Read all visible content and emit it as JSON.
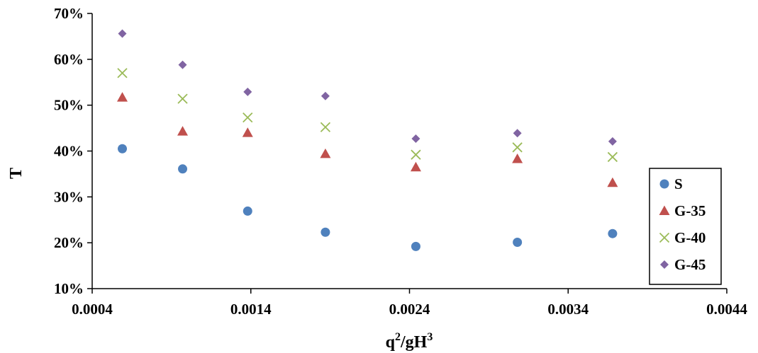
{
  "chart_data": {
    "type": "scatter",
    "xlabel": "q²/gH³",
    "xlabel_base": "q",
    "xlabel_sup1": "2",
    "xlabel_mid": "/gH",
    "xlabel_sup2": "3",
    "ylabel": "T",
    "xlim": [
      0.0004,
      0.0044
    ],
    "ylim": [
      0.1,
      0.7
    ],
    "x_ticks": [
      "0.0004",
      "0.0014",
      "0.0024",
      "0.0034",
      "0.0044"
    ],
    "y_ticks": [
      "10%",
      "20%",
      "30%",
      "40%",
      "50%",
      "60%",
      "70%"
    ],
    "legend_position": "bottom-right",
    "grid": false,
    "series": [
      {
        "name": "S",
        "marker": "circle",
        "color": "#4F81BD",
        "x": [
          0.00059,
          0.00097,
          0.00138,
          0.00187,
          0.00244,
          0.00308,
          0.00368
        ],
        "y": [
          0.405,
          0.361,
          0.269,
          0.223,
          0.192,
          0.201,
          0.22
        ]
      },
      {
        "name": "G-35",
        "marker": "triangle",
        "color": "#C0504D",
        "x": [
          0.00059,
          0.00097,
          0.00138,
          0.00187,
          0.00244,
          0.00308,
          0.00368
        ],
        "y": [
          0.517,
          0.443,
          0.44,
          0.394,
          0.365,
          0.383,
          0.331
        ]
      },
      {
        "name": "G-40",
        "marker": "x",
        "color": "#9BBB59",
        "x": [
          0.00059,
          0.00097,
          0.00138,
          0.00187,
          0.00244,
          0.00308,
          0.00368
        ],
        "y": [
          0.57,
          0.514,
          0.473,
          0.452,
          0.392,
          0.408,
          0.387
        ]
      },
      {
        "name": "G-45",
        "marker": "diamond",
        "color": "#8064A2",
        "x": [
          0.00059,
          0.00097,
          0.00138,
          0.00187,
          0.00244,
          0.00308,
          0.00368
        ],
        "y": [
          0.656,
          0.588,
          0.529,
          0.52,
          0.427,
          0.439,
          0.421
        ]
      }
    ]
  }
}
